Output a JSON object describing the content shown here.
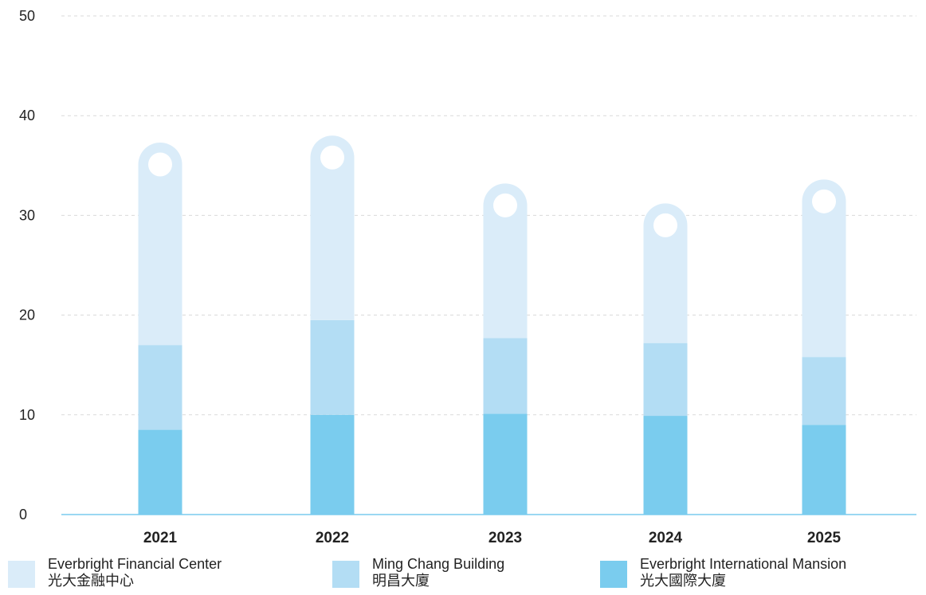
{
  "chart_data": {
    "type": "bar",
    "stacked": true,
    "categories": [
      "2021",
      "2022",
      "2023",
      "2024",
      "2025"
    ],
    "series": [
      {
        "name": "Everbright International Mansion",
        "name_zh": "光大國際大廈",
        "color": "#7accee",
        "values": [
          8.5,
          10.0,
          10.1,
          9.9,
          9.0
        ]
      },
      {
        "name": "Ming Chang Building",
        "name_zh": "明昌大廈",
        "color": "#b3ddf4",
        "values": [
          8.5,
          9.5,
          7.6,
          7.3,
          6.8
        ]
      },
      {
        "name": "Everbright Financial Center",
        "name_zh": "光大金融中心",
        "color": "#daecf9",
        "values": [
          20.3,
          18.5,
          15.5,
          14.0,
          17.8
        ]
      }
    ],
    "ylim": [
      0,
      50
    ],
    "yticks": [
      0,
      10,
      20,
      30,
      40,
      50
    ],
    "grid": true,
    "legend_position": "bottom",
    "title": "",
    "xlabel": "",
    "ylabel": ""
  },
  "legend": [
    {
      "label": "Everbright Financial Center",
      "label_zh": "光大金融中心",
      "color": "#daecf9"
    },
    {
      "label": "Ming Chang Building",
      "label_zh": "明昌大廈",
      "color": "#b3ddf4"
    },
    {
      "label": "Everbright International Mansion",
      "label_zh": "光大國際大廈",
      "color": "#7accee"
    }
  ]
}
